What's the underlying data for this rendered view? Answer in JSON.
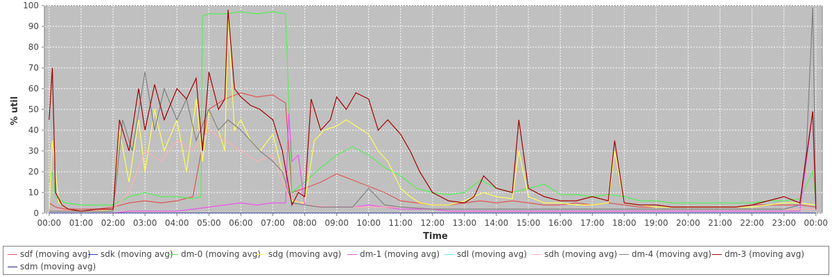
{
  "chart_data": {
    "type": "line",
    "title": "",
    "xlabel": "Time",
    "ylabel": "% util",
    "ylim": [
      0,
      100
    ],
    "yticks": [
      0,
      10,
      20,
      30,
      40,
      50,
      60,
      70,
      80,
      90,
      100
    ],
    "x_tick_labels": [
      "00:00",
      "01:00",
      "02:00",
      "03:00",
      "04:00",
      "05:00",
      "06:00",
      "07:00",
      "08:00",
      "09:00",
      "10:00",
      "11:00",
      "12:00",
      "13:00",
      "14:00",
      "15:00",
      "16:00",
      "17:00",
      "18:00",
      "19:00",
      "20:00",
      "21:00",
      "22:00",
      "23:00",
      "00:00"
    ],
    "xlim_hours": [
      -0.15,
      24.2
    ],
    "grid": true,
    "legend_position": "bottom",
    "colors": {
      "plot_background": "#c0c0c0",
      "grid": "#ffffff"
    },
    "series": [
      {
        "name": "sdf (moving avg)",
        "color": "#e05555",
        "x": [
          0,
          0.2,
          0.5,
          1,
          1.5,
          2,
          2.5,
          3,
          3.5,
          4,
          4.5,
          5,
          5.5,
          6,
          6.5,
          7,
          7.4,
          7.6,
          8,
          8.5,
          9,
          9.5,
          10,
          10.5,
          11,
          11.5,
          12,
          12.5,
          13,
          13.5,
          14,
          14.5,
          15,
          15.5,
          16,
          16.5,
          17,
          17.5,
          18,
          18.5,
          19,
          19.5,
          20,
          20.5,
          21,
          21.5,
          22,
          22.5,
          23,
          23.5,
          24
        ],
        "y": [
          5,
          3,
          2,
          2,
          2,
          3,
          5,
          6,
          5,
          6,
          8,
          50,
          55,
          58,
          56,
          57,
          53,
          10,
          12,
          15,
          19,
          16,
          13,
          10,
          6,
          5,
          4,
          4,
          5,
          6,
          5,
          6,
          5,
          4,
          4,
          5,
          4,
          5,
          4,
          3,
          3,
          3,
          3,
          3,
          3,
          3,
          4,
          4,
          4,
          4,
          3
        ]
      },
      {
        "name": "sdk (moving avg)",
        "color": "#3030c0",
        "x": [
          0,
          2,
          4,
          6,
          8,
          10,
          12,
          14,
          16,
          18,
          20,
          22,
          24
        ],
        "y": [
          0,
          0,
          0,
          0,
          0,
          0,
          0,
          0,
          0,
          0,
          0,
          0,
          0
        ]
      },
      {
        "name": "dm-0 (moving avg)",
        "color": "#55ee55",
        "x": [
          0,
          0.1,
          0.2,
          0.5,
          1,
          1.5,
          2,
          2.5,
          3,
          3.5,
          4,
          4.5,
          4.75,
          4.8,
          5,
          5.5,
          6,
          6.5,
          7,
          7.4,
          7.6,
          8,
          8.5,
          9,
          9.5,
          10,
          10.5,
          11,
          11.5,
          12,
          12.5,
          13,
          13.5,
          14,
          14.5,
          15,
          15.5,
          16,
          16.5,
          17,
          17.5,
          18,
          18.5,
          19,
          19.5,
          20,
          20.5,
          21,
          21.5,
          22,
          22.5,
          23,
          23.5,
          23.9,
          24
        ],
        "y": [
          15,
          20,
          8,
          5,
          4,
          4,
          4,
          8,
          10,
          8,
          8,
          7,
          8,
          95,
          96,
          96,
          97,
          96,
          97,
          96,
          10,
          15,
          22,
          28,
          32,
          28,
          22,
          18,
          12,
          10,
          9,
          10,
          16,
          12,
          10,
          12,
          14,
          9,
          9,
          8,
          9,
          8,
          6,
          6,
          5,
          5,
          5,
          5,
          5,
          5,
          6,
          6,
          7,
          20,
          5
        ]
      },
      {
        "name": "sdg (moving avg)",
        "color": "#ffff55",
        "x": [
          0,
          0.1,
          0.3,
          0.6,
          1,
          1.5,
          2,
          2.2,
          2.5,
          2.8,
          3,
          3.3,
          3.6,
          4,
          4.3,
          4.6,
          4.8,
          5,
          5.3,
          5.5,
          5.6,
          5.8,
          6,
          6.3,
          6.6,
          7,
          7.3,
          7.6,
          8,
          8.3,
          8.6,
          9,
          9.3,
          9.6,
          10,
          10.3,
          10.6,
          11,
          11.3,
          11.6,
          12,
          12.5,
          13,
          13.3,
          13.6,
          14,
          14.5,
          14.7,
          15,
          15.5,
          16,
          16.5,
          17,
          17.5,
          17.7,
          18,
          18.5,
          19,
          19.5,
          20,
          20.5,
          21,
          21.5,
          22,
          22.5,
          23,
          23.5,
          24
        ],
        "y": [
          2,
          35,
          5,
          2,
          1,
          1,
          2,
          40,
          15,
          45,
          20,
          50,
          30,
          45,
          20,
          55,
          25,
          50,
          40,
          30,
          95,
          40,
          45,
          35,
          30,
          38,
          20,
          6,
          5,
          35,
          40,
          42,
          45,
          42,
          38,
          30,
          25,
          12,
          8,
          5,
          4,
          4,
          6,
          8,
          10,
          8,
          7,
          30,
          8,
          5,
          5,
          4,
          4,
          5,
          30,
          5,
          4,
          3,
          3,
          3,
          3,
          3,
          3,
          3,
          4,
          5,
          5,
          4
        ]
      },
      {
        "name": "dm-1 (moving avg)",
        "color": "#ee55ee",
        "x": [
          0,
          0.5,
          1,
          1.5,
          2,
          2.5,
          3,
          3.5,
          4,
          4.5,
          5,
          5.5,
          6,
          6.5,
          7,
          7.4,
          7.5,
          7.6,
          7.8,
          8,
          8.5,
          9,
          9.5,
          10,
          10.5,
          11,
          11.5,
          12,
          12.5,
          13,
          13.5,
          14,
          14.5,
          15,
          15.5,
          16,
          16.5,
          17,
          17.5,
          18,
          18.5,
          19,
          19.5,
          20,
          20.5,
          21,
          21.5,
          22,
          22.5,
          23,
          23.5,
          23.9,
          24
        ],
        "y": [
          0,
          0,
          0,
          0,
          0,
          1,
          1,
          1,
          1,
          2,
          3,
          4,
          5,
          4,
          5,
          5,
          48,
          25,
          28,
          4,
          3,
          3,
          3,
          4,
          3,
          2,
          2,
          2,
          1,
          1,
          1,
          1,
          1,
          1,
          1,
          1,
          1,
          1,
          1,
          1,
          1,
          1,
          1,
          1,
          1,
          1,
          1,
          1,
          1,
          1,
          1,
          49,
          1
        ]
      },
      {
        "name": "sdl (moving avg)",
        "color": "#55eeee",
        "x": [
          0,
          2,
          4,
          6,
          8,
          10,
          12,
          14,
          16,
          18,
          20,
          22,
          24
        ],
        "y": [
          0,
          0,
          0,
          0,
          0,
          0,
          0,
          0,
          0,
          0,
          0,
          0,
          0
        ]
      },
      {
        "name": "sdh (moving avg)",
        "color": "#ffb0b0",
        "x": [
          0,
          1,
          2,
          2.5,
          3,
          3.5,
          4,
          4.5,
          5,
          5.5,
          6,
          6.5,
          7,
          7.5,
          8,
          9,
          10,
          11,
          12,
          13,
          14,
          15,
          16,
          17,
          18,
          19,
          20,
          21,
          22,
          23,
          24
        ],
        "y": [
          2,
          1,
          2,
          10,
          30,
          25,
          35,
          30,
          40,
          35,
          30,
          25,
          28,
          8,
          4,
          3,
          3,
          3,
          2,
          2,
          2,
          2,
          2,
          2,
          2,
          2,
          2,
          2,
          2,
          2,
          2
        ]
      },
      {
        "name": "dm-4 (moving avg)",
        "color": "#808080",
        "x": [
          0,
          0.5,
          1,
          1.5,
          2,
          2.3,
          2.6,
          3,
          3.3,
          3.6,
          4,
          4.3,
          4.6,
          5,
          5.3,
          5.6,
          6,
          6.3,
          6.6,
          7,
          7.3,
          7.6,
          8,
          8.5,
          9,
          9.5,
          10,
          10.5,
          11,
          12,
          13,
          14,
          15,
          16,
          17,
          18,
          19,
          20,
          21,
          22,
          23,
          23.5,
          23.7,
          23.9,
          24
        ],
        "y": [
          1,
          1,
          1,
          1,
          1,
          45,
          30,
          68,
          40,
          60,
          45,
          55,
          35,
          50,
          40,
          45,
          40,
          35,
          30,
          25,
          20,
          5,
          4,
          3,
          3,
          3,
          12,
          4,
          3,
          2,
          2,
          2,
          2,
          2,
          2,
          2,
          2,
          2,
          2,
          2,
          2,
          4,
          30,
          99,
          5
        ]
      },
      {
        "name": "dm-3 (moving avg)",
        "color": "#a00000",
        "x": [
          0,
          0.1,
          0.2,
          0.4,
          0.6,
          1,
          1.5,
          2,
          2.2,
          2.5,
          2.8,
          3,
          3.3,
          3.6,
          4,
          4.3,
          4.6,
          4.8,
          5,
          5.3,
          5.5,
          5.6,
          5.8,
          6,
          6.3,
          6.6,
          7,
          7.3,
          7.6,
          7.8,
          8,
          8.2,
          8.5,
          8.8,
          9,
          9.3,
          9.6,
          10,
          10.3,
          10.6,
          11,
          11.3,
          11.6,
          12,
          12.5,
          13,
          13.3,
          13.6,
          14,
          14.5,
          14.7,
          15,
          15.5,
          16,
          16.5,
          17,
          17.5,
          17.7,
          18,
          18.5,
          19,
          19.5,
          20,
          20.5,
          21,
          21.5,
          22,
          22.5,
          23,
          23.5,
          23.9,
          24
        ],
        "y": [
          45,
          70,
          10,
          4,
          2,
          1,
          2,
          2,
          45,
          30,
          60,
          40,
          62,
          45,
          60,
          55,
          65,
          30,
          68,
          50,
          55,
          98,
          60,
          56,
          52,
          50,
          45,
          30,
          4,
          10,
          8,
          55,
          40,
          45,
          56,
          50,
          58,
          55,
          40,
          45,
          38,
          30,
          20,
          10,
          6,
          5,
          8,
          18,
          12,
          10,
          45,
          12,
          8,
          6,
          6,
          8,
          6,
          35,
          5,
          4,
          4,
          3,
          3,
          3,
          3,
          3,
          4,
          6,
          8,
          5,
          49,
          2
        ]
      },
      {
        "name": "sdm (moving avg)",
        "color": "#202090",
        "x": [
          0,
          2,
          4,
          6,
          8,
          10,
          12,
          14,
          16,
          18,
          20,
          22,
          24
        ],
        "y": [
          0,
          0,
          0,
          0,
          0,
          0,
          0,
          0,
          0,
          0,
          0,
          0,
          0
        ]
      }
    ]
  }
}
